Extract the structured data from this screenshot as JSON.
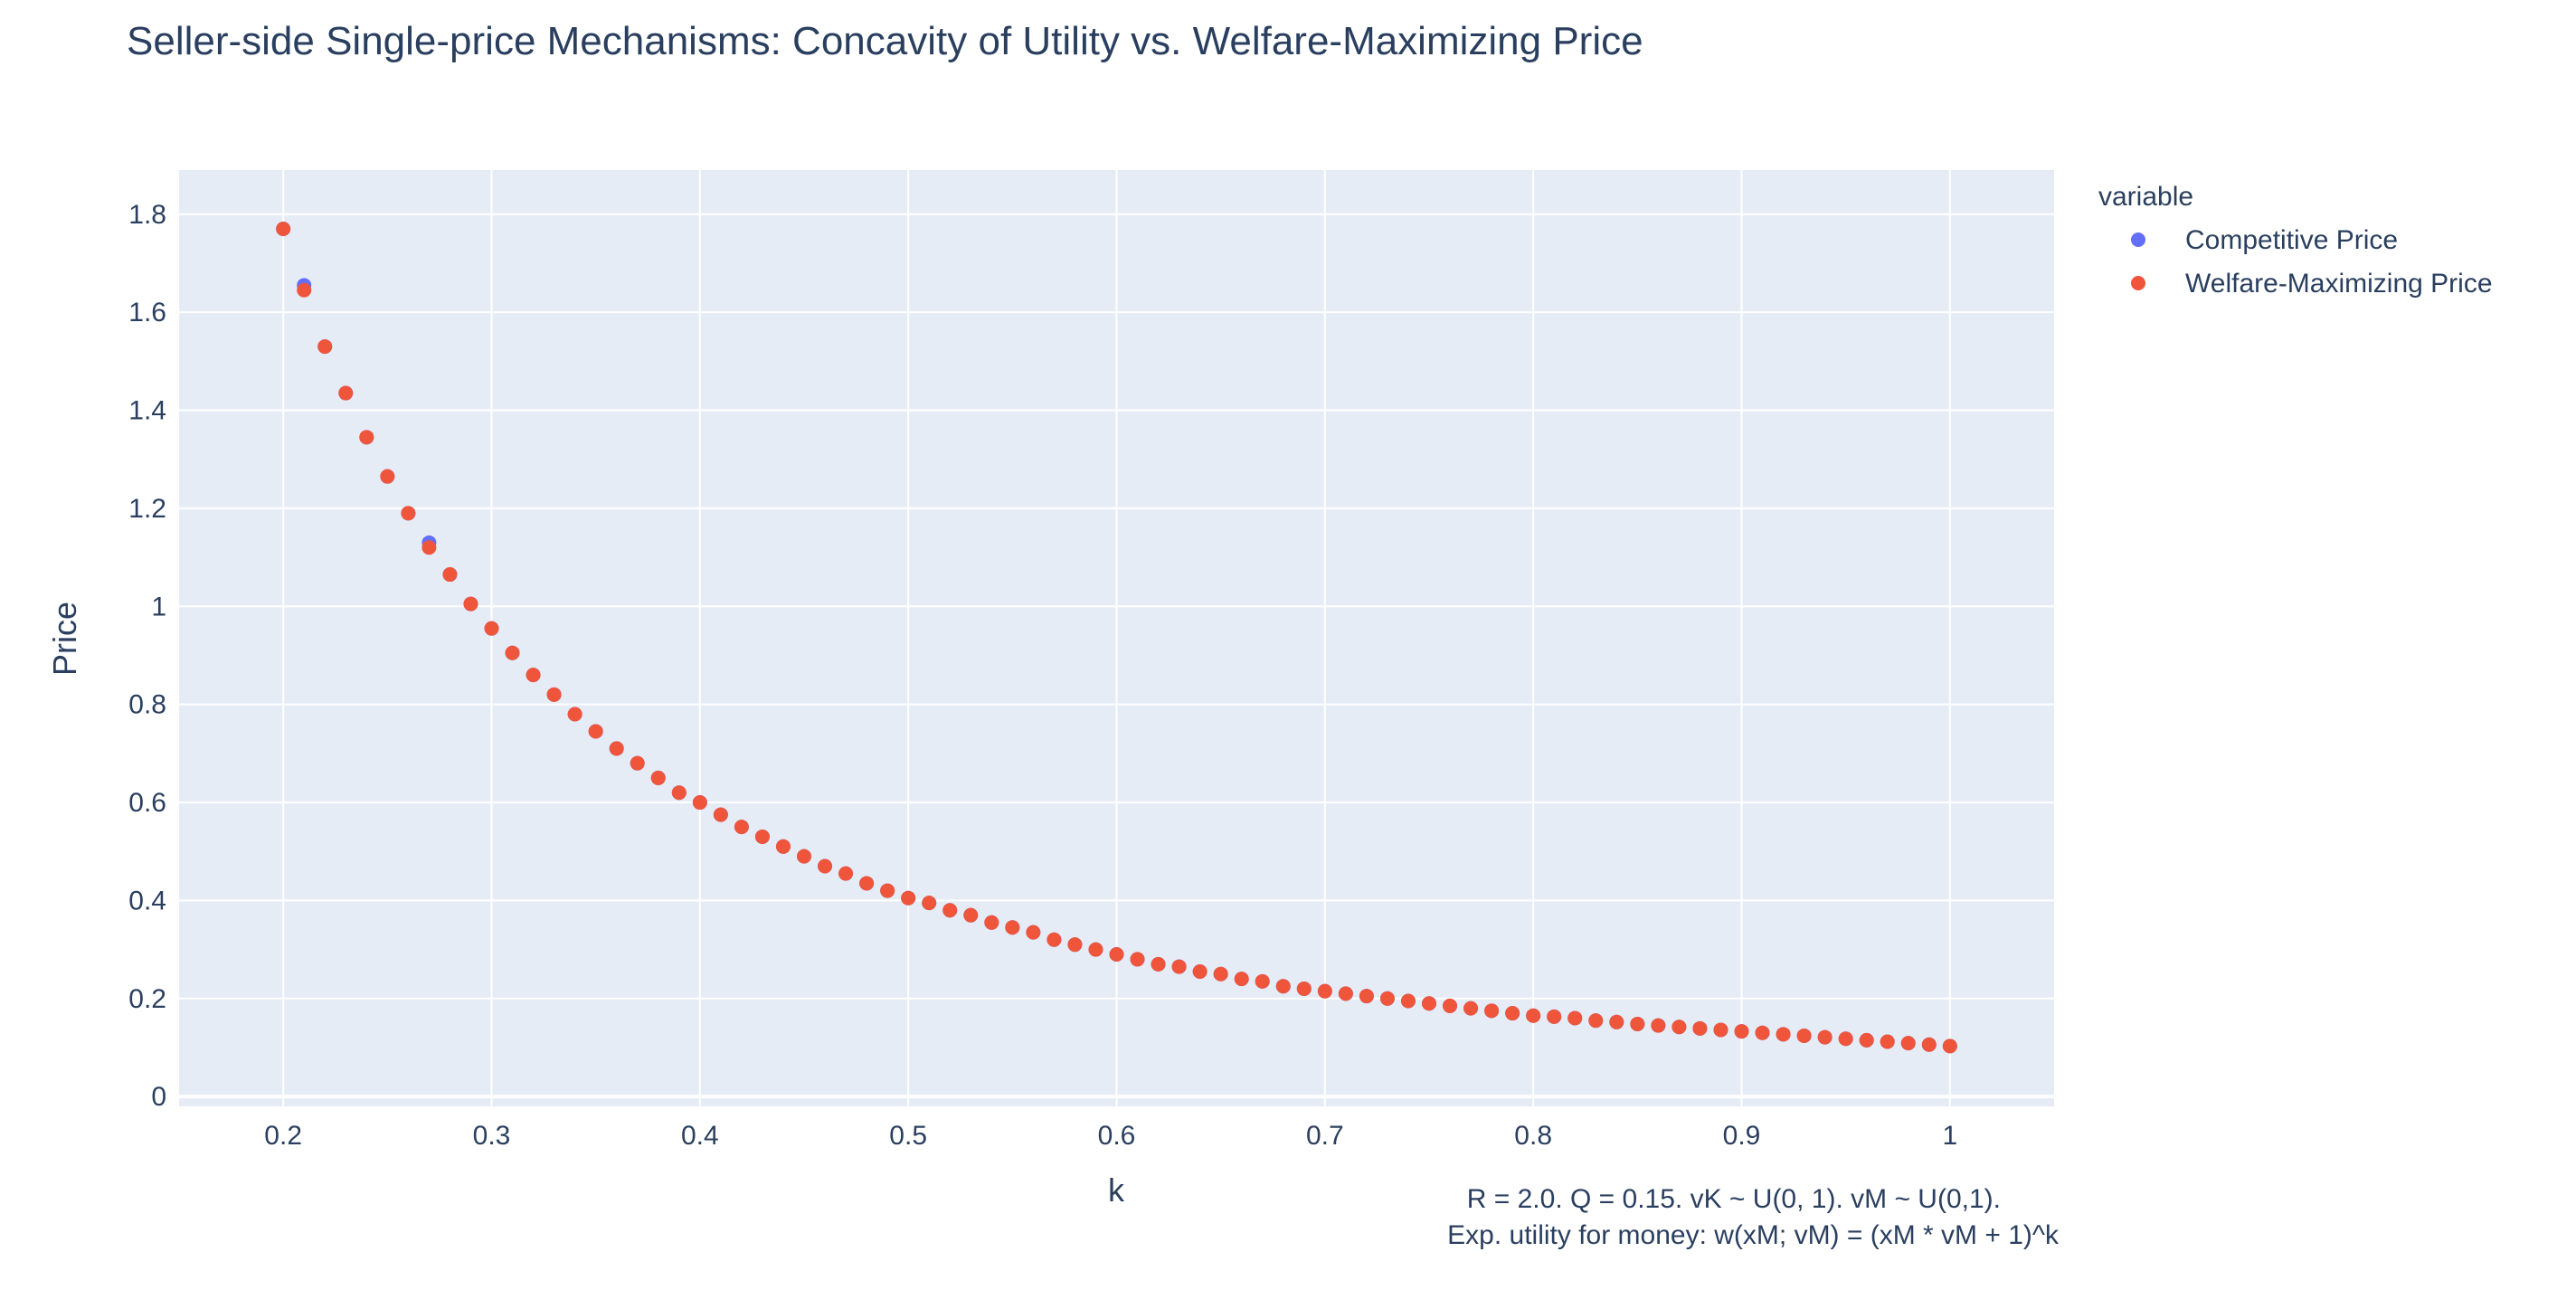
{
  "chart_data": {
    "type": "scatter",
    "title": "Seller-side Single-price Mechanisms: Concavity of Utility vs. Welfare-Maximizing Price",
    "xlabel": "k",
    "ylabel": "Price",
    "xlim": [
      0.15,
      1.05
    ],
    "ylim": [
      -0.02,
      1.89
    ],
    "x_ticks": [
      0.2,
      0.3,
      0.4,
      0.5,
      0.6,
      0.7,
      0.8,
      0.9,
      1
    ],
    "x_tick_labels": [
      "0.2",
      "0.3",
      "0.4",
      "0.5",
      "0.6",
      "0.7",
      "0.8",
      "0.9",
      "1"
    ],
    "y_ticks": [
      0,
      0.2,
      0.4,
      0.6,
      0.8,
      1,
      1.2,
      1.4,
      1.6,
      1.8
    ],
    "y_tick_labels": [
      "0",
      "0.2",
      "0.4",
      "0.6",
      "0.8",
      "1",
      "1.2",
      "1.4",
      "1.6",
      "1.8"
    ],
    "grid": true,
    "legend_position": "top-right",
    "legend_title": "variable",
    "background_color": "#e5ecf6",
    "x": [
      0.2,
      0.21,
      0.22,
      0.23,
      0.24,
      0.25,
      0.26,
      0.27,
      0.28,
      0.29,
      0.3,
      0.31,
      0.32,
      0.33,
      0.34,
      0.35,
      0.36,
      0.37,
      0.38,
      0.39,
      0.4,
      0.41,
      0.42,
      0.43,
      0.44,
      0.45,
      0.46,
      0.47,
      0.48,
      0.49,
      0.5,
      0.51,
      0.52,
      0.53,
      0.54,
      0.55,
      0.56,
      0.57,
      0.58,
      0.59,
      0.6,
      0.61,
      0.62,
      0.63,
      0.64,
      0.65,
      0.66,
      0.67,
      0.68,
      0.69,
      0.7,
      0.71,
      0.72,
      0.73,
      0.74,
      0.75,
      0.76,
      0.77,
      0.78,
      0.79,
      0.8,
      0.81,
      0.82,
      0.83,
      0.84,
      0.85,
      0.86,
      0.87,
      0.88,
      0.89,
      0.9,
      0.91,
      0.92,
      0.93,
      0.94,
      0.95,
      0.96,
      0.97,
      0.98,
      0.99,
      1.0
    ],
    "series": [
      {
        "name": "Competitive Price",
        "color": "#636efa",
        "values": [
          1.77,
          1.655,
          1.53,
          1.435,
          1.345,
          1.265,
          1.19,
          1.13,
          1.065,
          1.005,
          0.955,
          0.905,
          0.86,
          0.82,
          0.78,
          0.745,
          0.71,
          0.68,
          0.65,
          0.62,
          0.6,
          0.575,
          0.55,
          0.53,
          0.51,
          0.49,
          0.47,
          0.455,
          0.435,
          0.42,
          0.405,
          0.395,
          0.38,
          0.37,
          0.355,
          0.345,
          0.335,
          0.32,
          0.31,
          0.3,
          0.29,
          0.28,
          0.27,
          0.265,
          0.255,
          0.25,
          0.24,
          0.235,
          0.225,
          0.22,
          0.215,
          0.21,
          0.205,
          0.2,
          0.195,
          0.19,
          0.185,
          0.18,
          0.175,
          0.17,
          0.165,
          0.163,
          0.16,
          0.155,
          0.152,
          0.148,
          0.145,
          0.142,
          0.139,
          0.136,
          0.133,
          0.13,
          0.127,
          0.124,
          0.121,
          0.118,
          0.115,
          0.112,
          0.109,
          0.106,
          0.103
        ]
      },
      {
        "name": "Welfare-Maximizing Price",
        "color": "#ef553b",
        "values": [
          1.77,
          1.645,
          1.53,
          1.435,
          1.345,
          1.265,
          1.19,
          1.12,
          1.065,
          1.005,
          0.955,
          0.905,
          0.86,
          0.82,
          0.78,
          0.745,
          0.71,
          0.68,
          0.65,
          0.62,
          0.6,
          0.575,
          0.55,
          0.53,
          0.51,
          0.49,
          0.47,
          0.455,
          0.435,
          0.42,
          0.405,
          0.395,
          0.38,
          0.37,
          0.355,
          0.345,
          0.335,
          0.32,
          0.31,
          0.3,
          0.29,
          0.28,
          0.27,
          0.265,
          0.255,
          0.25,
          0.24,
          0.235,
          0.225,
          0.22,
          0.215,
          0.21,
          0.205,
          0.2,
          0.195,
          0.19,
          0.185,
          0.18,
          0.175,
          0.17,
          0.165,
          0.163,
          0.16,
          0.155,
          0.152,
          0.148,
          0.145,
          0.142,
          0.139,
          0.136,
          0.133,
          0.13,
          0.127,
          0.124,
          0.121,
          0.118,
          0.115,
          0.112,
          0.109,
          0.106,
          0.103
        ]
      }
    ],
    "annotations": [
      "R = 2.0. Q = 0.15. vK ~ U(0, 1). vM ~ U(0,1).",
      "Exp. utility for money: w(xM; vM) = (xM * vM + 1)^k"
    ]
  }
}
